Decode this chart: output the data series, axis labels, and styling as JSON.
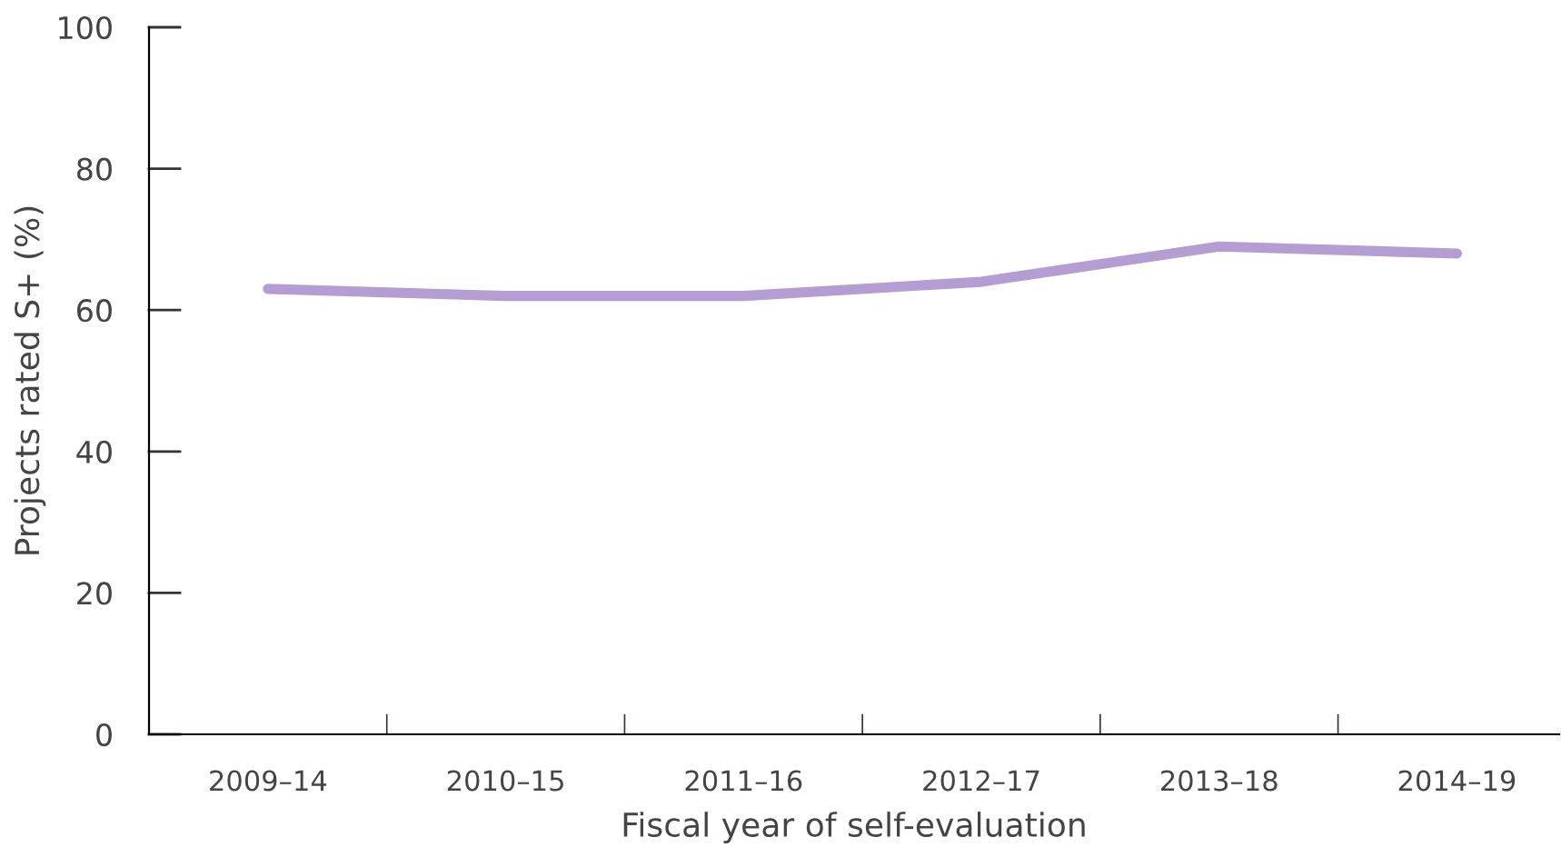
{
  "chart_data": {
    "type": "line",
    "xlabel": "Fiscal year of self-evaluation",
    "ylabel": "Projects rated S+ (%)",
    "categories": [
      "2009–14",
      "2010–15",
      "2011–16",
      "2012–17",
      "2013–18",
      "2014–19"
    ],
    "series": [
      {
        "color": "#b49dd2",
        "values": [
          63,
          62,
          62,
          64,
          69,
          68
        ]
      }
    ],
    "ylim": [
      0,
      100
    ],
    "yticks": [
      0,
      20,
      40,
      60,
      80,
      100
    ],
    "grid": false,
    "legend": false,
    "marker": "none",
    "line_style": "solid"
  }
}
